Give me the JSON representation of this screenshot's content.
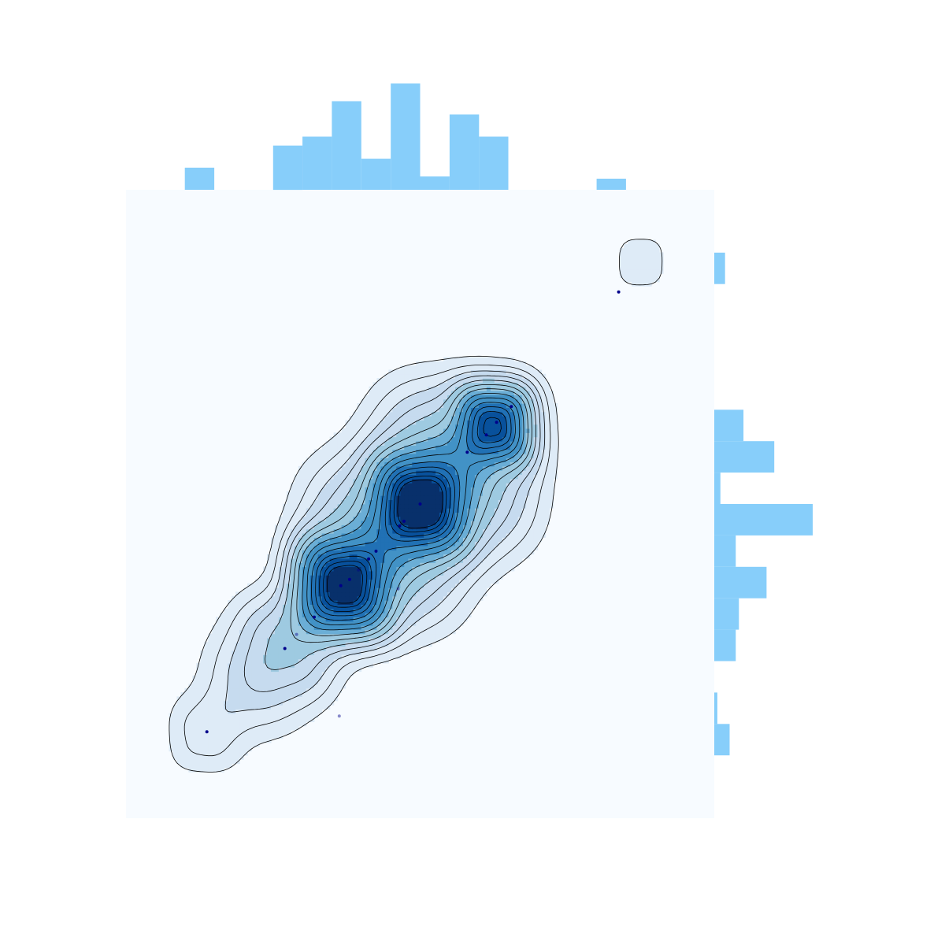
{
  "chart_data": {
    "type": "scatter",
    "subtype": "joint-plot-kde-contour-with-marginal-histograms",
    "title": "",
    "xlabel": "",
    "ylabel": "",
    "xlim": [
      0,
      20
    ],
    "ylim": [
      0,
      20
    ],
    "grid": false,
    "legend": "none",
    "colors": {
      "background": "#f7fbff",
      "histogram": "#87cefa",
      "points": "#00008b",
      "contour_line": "#000000",
      "density_scale": [
        "#f7fbff",
        "#deebf7",
        "#c6dbef",
        "#9ecae1",
        "#6baed6",
        "#4292c6",
        "#2171b5",
        "#08519c",
        "#08306b"
      ]
    },
    "points": [
      {
        "x": 2.75,
        "y": 2.75,
        "alpha": 1.0
      },
      {
        "x": 5.4,
        "y": 5.4,
        "alpha": 1.0
      },
      {
        "x": 5.8,
        "y": 5.85,
        "alpha": 0.45
      },
      {
        "x": 6.4,
        "y": 6.4,
        "alpha": 1.0
      },
      {
        "x": 7.25,
        "y": 3.25,
        "alpha": 0.45
      },
      {
        "x": 7.3,
        "y": 7.4,
        "alpha": 1.0
      },
      {
        "x": 7.6,
        "y": 7.6,
        "alpha": 1.0
      },
      {
        "x": 7.9,
        "y": 7.9,
        "alpha": 0.45
      },
      {
        "x": 8.25,
        "y": 8.25,
        "alpha": 1.0
      },
      {
        "x": 8.5,
        "y": 8.5,
        "alpha": 1.0
      },
      {
        "x": 9.25,
        "y": 7.3,
        "alpha": 0.45
      },
      {
        "x": 9.3,
        "y": 9.3,
        "alpha": 1.0
      },
      {
        "x": 9.45,
        "y": 9.45,
        "alpha": 1.0
      },
      {
        "x": 10.0,
        "y": 10.0,
        "alpha": 1.0
      },
      {
        "x": 11.6,
        "y": 11.65,
        "alpha": 1.0
      },
      {
        "x": 12.25,
        "y": 12.2,
        "alpha": 1.0
      },
      {
        "x": 12.6,
        "y": 12.6,
        "alpha": 1.0
      },
      {
        "x": 13.1,
        "y": 13.1,
        "alpha": 1.0
      },
      {
        "x": 16.75,
        "y": 16.75,
        "alpha": 1.0
      }
    ],
    "density_peaks": [
      {
        "x": 7.4,
        "y": 7.4,
        "weight": 1.0,
        "sigma": 0.85
      },
      {
        "x": 10.0,
        "y": 10.0,
        "weight": 1.0,
        "sigma": 0.85
      },
      {
        "x": 12.5,
        "y": 12.5,
        "weight": 0.75,
        "sigma": 0.7
      },
      {
        "x": 8.7,
        "y": 8.7,
        "weight": 0.2,
        "sigma": 1.6
      },
      {
        "x": 11.2,
        "y": 11.2,
        "weight": 0.22,
        "sigma": 1.6
      },
      {
        "x": 5.4,
        "y": 5.4,
        "weight": 0.12,
        "sigma": 1.1
      },
      {
        "x": 4.2,
        "y": 4.2,
        "weight": 0.05,
        "sigma": 1.3
      },
      {
        "x": 2.6,
        "y": 2.6,
        "weight": 0.045,
        "sigma": 0.9
      },
      {
        "x": 17.5,
        "y": 17.7,
        "weight": 0.04,
        "sigma": 0.75
      }
    ],
    "marginal_x": {
      "bin_edges": [
        2,
        3,
        4,
        5,
        6,
        7,
        8,
        9,
        10,
        11,
        12,
        13,
        14,
        15,
        16,
        17,
        18
      ],
      "counts": [
        1,
        0,
        0,
        2,
        2.4,
        4,
        1.4,
        4.8,
        0.6,
        3.4,
        2.4,
        0,
        0,
        0,
        0.5,
        0
      ]
    },
    "marginal_y": {
      "bin_edges": [
        2,
        3,
        4,
        5,
        6,
        7,
        8,
        9,
        10,
        11,
        12,
        13,
        14,
        15,
        16,
        17,
        18
      ],
      "counts": [
        1,
        0.2,
        0,
        1.4,
        1.6,
        3.4,
        1.4,
        6.4,
        0.4,
        3.9,
        1.9,
        0,
        0,
        0,
        0,
        0.7
      ]
    }
  }
}
